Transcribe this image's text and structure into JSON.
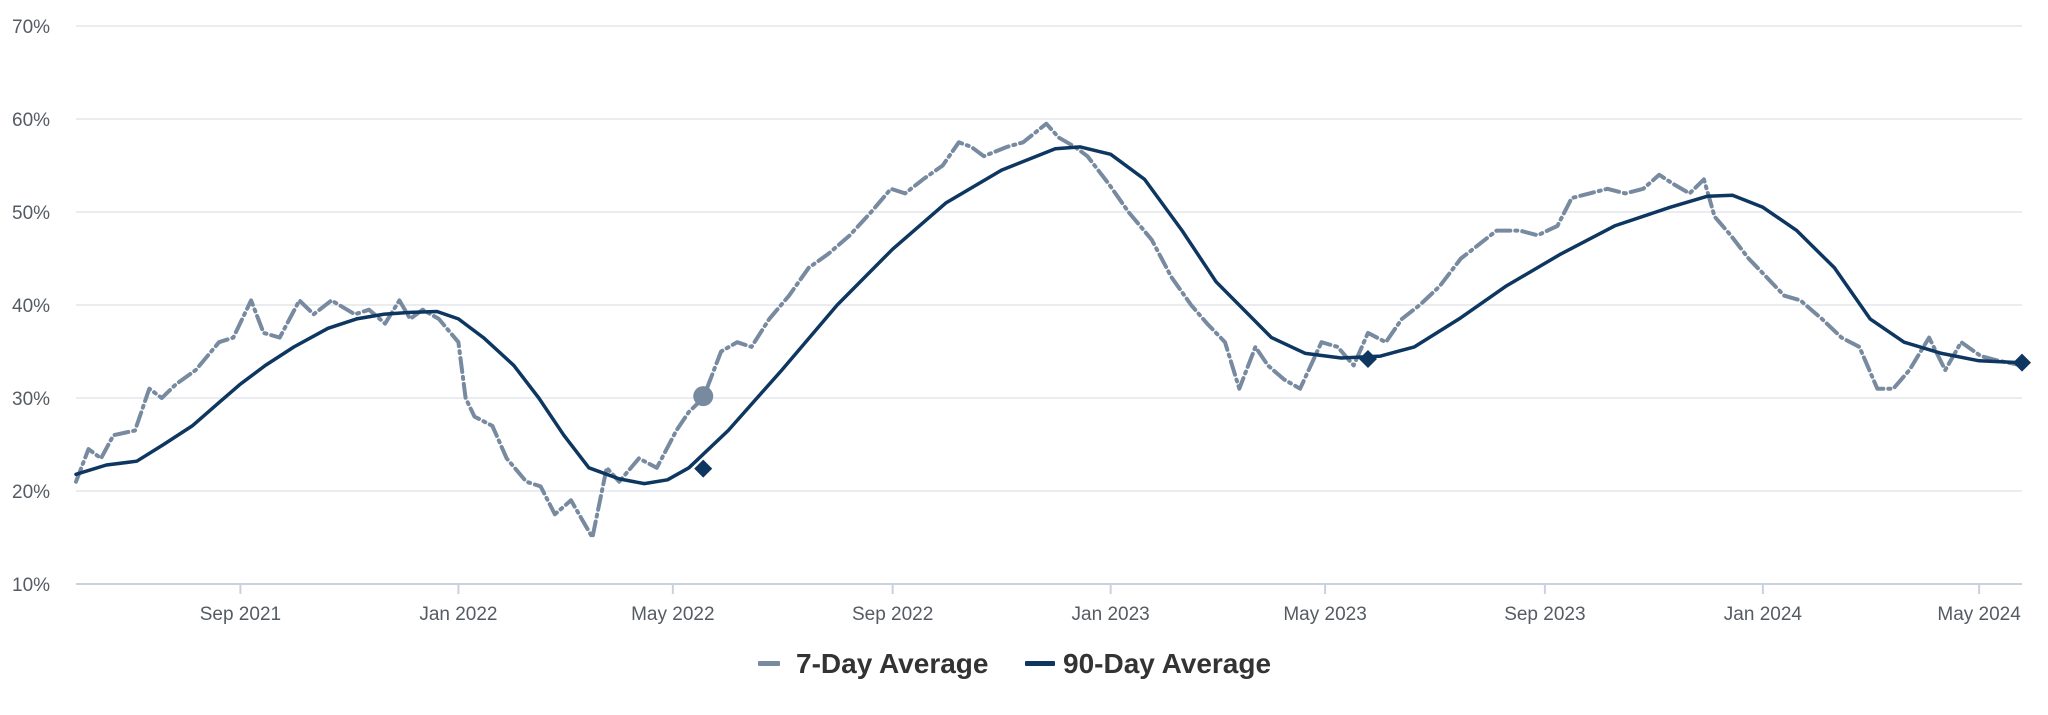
{
  "chart_data": {
    "type": "line",
    "title": "",
    "xlabel": "",
    "ylabel": "",
    "ylim": [
      10,
      70
    ],
    "xlim": [
      "2021-06-01",
      "2024-05-25"
    ],
    "grid": true,
    "legend_position": "bottom-center",
    "y_ticks": [
      10,
      20,
      30,
      40,
      50,
      60,
      70
    ],
    "y_tick_labels": [
      "10%",
      "20%",
      "30%",
      "40%",
      "50%",
      "60%",
      "70%"
    ],
    "x_ticks": [
      "2021-09-01",
      "2022-01-01",
      "2022-05-01",
      "2022-09-01",
      "2023-01-01",
      "2023-05-01",
      "2023-09-01",
      "2024-01-01",
      "2024-05-01"
    ],
    "x_tick_labels": [
      "Sep 2021",
      "Jan 2022",
      "May 2022",
      "Sep 2022",
      "Jan 2023",
      "May 2023",
      "Sep 2023",
      "Jan 2024",
      "May 2024"
    ],
    "series": [
      {
        "name": "7-Day Average",
        "color": "#778aa0",
        "style": "dash-dot",
        "points": [
          [
            "2021-06-01",
            21
          ],
          [
            "2021-06-08",
            24.5
          ],
          [
            "2021-06-15",
            23.5
          ],
          [
            "2021-06-22",
            26
          ],
          [
            "2021-07-04",
            26.5
          ],
          [
            "2021-07-12",
            31
          ],
          [
            "2021-07-19",
            30
          ],
          [
            "2021-07-27",
            31.5
          ],
          [
            "2021-08-07",
            33
          ],
          [
            "2021-08-20",
            36
          ],
          [
            "2021-08-28",
            36.5
          ],
          [
            "2021-09-07",
            40.5
          ],
          [
            "2021-09-14",
            37
          ],
          [
            "2021-09-23",
            36.5
          ],
          [
            "2021-10-04",
            40.5
          ],
          [
            "2021-10-12",
            39
          ],
          [
            "2021-10-22",
            40.5
          ],
          [
            "2021-11-04",
            39
          ],
          [
            "2021-11-12",
            39.5
          ],
          [
            "2021-11-21",
            38
          ],
          [
            "2021-11-29",
            40.5
          ],
          [
            "2021-12-05",
            38.5
          ],
          [
            "2021-12-12",
            39.5
          ],
          [
            "2021-12-21",
            38.5
          ],
          [
            "2022-01-01",
            36
          ],
          [
            "2022-01-05",
            30
          ],
          [
            "2022-01-10",
            28
          ],
          [
            "2022-01-20",
            27
          ],
          [
            "2022-01-28",
            23.5
          ],
          [
            "2022-02-08",
            21
          ],
          [
            "2022-02-16",
            20.5
          ],
          [
            "2022-02-24",
            17.5
          ],
          [
            "2022-03-05",
            19
          ],
          [
            "2022-03-17",
            15
          ],
          [
            "2022-03-25",
            22.5
          ],
          [
            "2022-04-01",
            21
          ],
          [
            "2022-04-12",
            23.5
          ],
          [
            "2022-04-22",
            22.5
          ],
          [
            "2022-05-03",
            26.5
          ],
          [
            "2022-05-10",
            28.5
          ],
          [
            "2022-05-18",
            30
          ],
          [
            "2022-05-28",
            35
          ],
          [
            "2022-06-06",
            36
          ],
          [
            "2022-06-14",
            35.5
          ],
          [
            "2022-06-24",
            38.5
          ],
          [
            "2022-07-05",
            41
          ],
          [
            "2022-07-16",
            44
          ],
          [
            "2022-07-27",
            45.5
          ],
          [
            "2022-08-08",
            47.5
          ],
          [
            "2022-08-20",
            50
          ],
          [
            "2022-08-31",
            52.5
          ],
          [
            "2022-09-08",
            52
          ],
          [
            "2022-09-18",
            53.5
          ],
          [
            "2022-09-29",
            55
          ],
          [
            "2022-10-08",
            57.5
          ],
          [
            "2022-10-15",
            57
          ],
          [
            "2022-10-22",
            56
          ],
          [
            "2022-11-04",
            57
          ],
          [
            "2022-11-13",
            57.5
          ],
          [
            "2022-11-26",
            59.5
          ],
          [
            "2022-12-03",
            58
          ],
          [
            "2022-12-12",
            57
          ],
          [
            "2022-12-19",
            56
          ],
          [
            "2022-12-31",
            53
          ],
          [
            "2023-01-11",
            50
          ],
          [
            "2023-01-24",
            47
          ],
          [
            "2023-02-04",
            43
          ],
          [
            "2023-02-15",
            40
          ],
          [
            "2023-02-24",
            38
          ],
          [
            "2023-03-06",
            36
          ],
          [
            "2023-03-14",
            31
          ],
          [
            "2023-03-23",
            35.5
          ],
          [
            "2023-03-30",
            33.5
          ],
          [
            "2023-04-08",
            32
          ],
          [
            "2023-04-17",
            31
          ],
          [
            "2023-04-29",
            36
          ],
          [
            "2023-05-08",
            35.5
          ],
          [
            "2023-05-17",
            33.5
          ],
          [
            "2023-05-25",
            37
          ],
          [
            "2023-06-04",
            36
          ],
          [
            "2023-06-13",
            38.5
          ],
          [
            "2023-06-23",
            40
          ],
          [
            "2023-07-04",
            42
          ],
          [
            "2023-07-16",
            45
          ],
          [
            "2023-07-26",
            46.5
          ],
          [
            "2023-08-05",
            48
          ],
          [
            "2023-08-18",
            48
          ],
          [
            "2023-08-28",
            47.5
          ],
          [
            "2023-09-08",
            48.5
          ],
          [
            "2023-09-16",
            51.5
          ],
          [
            "2023-09-26",
            52
          ],
          [
            "2023-10-06",
            52.5
          ],
          [
            "2023-10-16",
            52
          ],
          [
            "2023-10-26",
            52.5
          ],
          [
            "2023-11-04",
            54
          ],
          [
            "2023-11-12",
            53
          ],
          [
            "2023-11-21",
            52
          ],
          [
            "2023-11-29",
            53.5
          ],
          [
            "2023-12-05",
            49.5
          ],
          [
            "2023-12-14",
            47.5
          ],
          [
            "2023-12-24",
            45
          ],
          [
            "2024-01-03",
            43
          ],
          [
            "2024-01-13",
            41
          ],
          [
            "2024-01-22",
            40.5
          ],
          [
            "2024-02-03",
            38.5
          ],
          [
            "2024-02-14",
            36.5
          ],
          [
            "2024-02-24",
            35.5
          ],
          [
            "2024-03-05",
            31
          ],
          [
            "2024-03-14",
            31
          ],
          [
            "2024-03-23",
            33
          ],
          [
            "2024-04-03",
            36.5
          ],
          [
            "2024-04-12",
            33
          ],
          [
            "2024-04-21",
            36
          ],
          [
            "2024-05-02",
            34.5
          ],
          [
            "2024-05-12",
            34
          ],
          [
            "2024-05-25",
            33.5
          ]
        ]
      },
      {
        "name": "90-Day Average",
        "color": "#0d3660",
        "style": "solid",
        "points": [
          [
            "2021-06-01",
            21.8
          ],
          [
            "2021-06-18",
            22.8
          ],
          [
            "2021-07-05",
            23.2
          ],
          [
            "2021-07-20",
            25
          ],
          [
            "2021-08-05",
            27
          ],
          [
            "2021-08-20",
            29.5
          ],
          [
            "2021-09-01",
            31.5
          ],
          [
            "2021-09-15",
            33.5
          ],
          [
            "2021-10-01",
            35.5
          ],
          [
            "2021-10-20",
            37.5
          ],
          [
            "2021-11-05",
            38.5
          ],
          [
            "2021-11-20",
            39
          ],
          [
            "2021-12-05",
            39.2
          ],
          [
            "2021-12-20",
            39.3
          ],
          [
            "2022-01-01",
            38.5
          ],
          [
            "2022-01-15",
            36.5
          ],
          [
            "2022-02-01",
            33.5
          ],
          [
            "2022-02-15",
            30
          ],
          [
            "2022-03-01",
            26
          ],
          [
            "2022-03-15",
            22.5
          ],
          [
            "2022-04-01",
            21.3
          ],
          [
            "2022-04-15",
            20.8
          ],
          [
            "2022-04-28",
            21.2
          ],
          [
            "2022-05-10",
            22.5
          ],
          [
            "2022-06-01",
            26.5
          ],
          [
            "2022-07-01",
            33
          ],
          [
            "2022-08-01",
            40
          ],
          [
            "2022-09-01",
            46
          ],
          [
            "2022-10-01",
            51
          ],
          [
            "2022-11-01",
            54.5
          ],
          [
            "2022-12-01",
            56.8
          ],
          [
            "2022-12-15",
            57
          ],
          [
            "2023-01-01",
            56.2
          ],
          [
            "2023-01-20",
            53.5
          ],
          [
            "2023-02-10",
            48
          ],
          [
            "2023-03-01",
            42.5
          ],
          [
            "2023-04-01",
            36.5
          ],
          [
            "2023-04-20",
            34.8
          ],
          [
            "2023-05-10",
            34.3
          ],
          [
            "2023-06-01",
            34.5
          ],
          [
            "2023-06-20",
            35.5
          ],
          [
            "2023-07-15",
            38.5
          ],
          [
            "2023-08-10",
            42
          ],
          [
            "2023-09-10",
            45.5
          ],
          [
            "2023-10-10",
            48.5
          ],
          [
            "2023-11-10",
            50.5
          ],
          [
            "2023-12-01",
            51.7
          ],
          [
            "2023-12-15",
            51.8
          ],
          [
            "2024-01-01",
            50.5
          ],
          [
            "2024-01-20",
            48
          ],
          [
            "2024-02-10",
            44
          ],
          [
            "2024-03-01",
            38.5
          ],
          [
            "2024-03-20",
            36
          ],
          [
            "2024-04-10",
            34.8
          ],
          [
            "2024-05-01",
            34
          ],
          [
            "2024-05-25",
            33.8
          ]
        ]
      }
    ],
    "markers": [
      {
        "series": "7-Day Average",
        "shape": "circle",
        "x": "2022-05-18",
        "y": 30.2
      },
      {
        "series": "90-Day Average",
        "shape": "diamond",
        "x": "2022-05-18",
        "y": 22.4
      },
      {
        "series": "90-Day Average",
        "shape": "diamond",
        "x": "2023-05-25",
        "y": 34.2
      },
      {
        "series": "90-Day Average",
        "shape": "diamond",
        "x": "2024-05-25",
        "y": 33.8
      }
    ]
  },
  "legend": {
    "items": [
      {
        "label": "7-Day Average",
        "color": "#778aa0",
        "icon": "dash-line-icon"
      },
      {
        "label": "90-Day Average",
        "color": "#0d3660",
        "icon": "solid-line-icon"
      }
    ]
  }
}
